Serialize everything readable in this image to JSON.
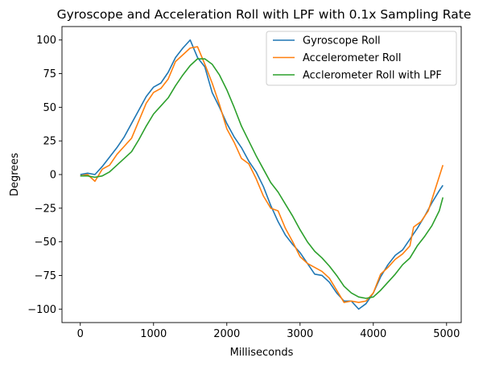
{
  "chart_data": {
    "type": "line",
    "title": "Gyroscope and Acceleration Roll with LPF with 0.1x Sampling Rate",
    "xlabel": "Milliseconds",
    "ylabel": "Degrees",
    "xlim": [
      -250,
      5200
    ],
    "ylim": [
      -110,
      110
    ],
    "xticks": [
      0,
      1000,
      2000,
      3000,
      4000,
      5000
    ],
    "yticks": [
      -100,
      -75,
      -50,
      -25,
      0,
      25,
      50,
      75,
      100
    ],
    "legend_position": "top-right",
    "grid": false,
    "series": [
      {
        "name": "Gyroscope Roll",
        "color": "#1f77b4",
        "x": [
          0,
          100,
          200,
          300,
          400,
          500,
          600,
          700,
          800,
          900,
          1000,
          1100,
          1200,
          1300,
          1400,
          1500,
          1600,
          1700,
          1800,
          1900,
          2000,
          2100,
          2200,
          2300,
          2400,
          2500,
          2600,
          2700,
          2800,
          2900,
          3000,
          3100,
          3200,
          3300,
          3400,
          3500,
          3600,
          3700,
          3800,
          3900,
          4000,
          4100,
          4200,
          4300,
          4400,
          4500,
          4600,
          4700,
          4800,
          4900,
          4950
        ],
        "y": [
          0,
          1,
          0,
          6,
          13,
          20,
          28,
          38,
          48,
          58,
          65,
          68,
          76,
          87,
          94,
          100,
          87,
          80,
          61,
          50,
          38,
          28,
          20,
          10,
          2,
          -9,
          -23,
          -35,
          -45,
          -52,
          -58,
          -66,
          -74,
          -75,
          -80,
          -88,
          -94,
          -94,
          -100,
          -96,
          -88,
          -76,
          -67,
          -60,
          -56,
          -48,
          -40,
          -31,
          -21,
          -12,
          -8
        ]
      },
      {
        "name": "Accelerometer Roll",
        "color": "#ff7f0e",
        "x": [
          0,
          100,
          200,
          300,
          400,
          500,
          600,
          700,
          800,
          900,
          1000,
          1100,
          1200,
          1300,
          1400,
          1500,
          1600,
          1700,
          1800,
          1900,
          2000,
          2100,
          2200,
          2300,
          2400,
          2500,
          2600,
          2700,
          2800,
          2900,
          3000,
          3100,
          3200,
          3300,
          3400,
          3500,
          3600,
          3700,
          3800,
          3900,
          4000,
          4100,
          4200,
          4300,
          4400,
          4500,
          4550,
          4650,
          4750,
          4850,
          4950
        ],
        "y": [
          -1,
          0,
          -5,
          4,
          7,
          15,
          21,
          27,
          40,
          53,
          61,
          64,
          71,
          84,
          89,
          94,
          95,
          82,
          68,
          52,
          34,
          24,
          12,
          8,
          -3,
          -16,
          -25,
          -27,
          -40,
          -50,
          -61,
          -66,
          -69,
          -72,
          -77,
          -86,
          -95,
          -94,
          -95,
          -94,
          -88,
          -74,
          -69,
          -63,
          -59,
          -53,
          -39,
          -35,
          -27,
          -10,
          7
        ]
      },
      {
        "name": "Acclerometer Roll with LPF",
        "color": "#2ca02c",
        "x": [
          0,
          100,
          200,
          300,
          400,
          500,
          600,
          700,
          800,
          900,
          1000,
          1100,
          1200,
          1300,
          1400,
          1500,
          1600,
          1700,
          1800,
          1900,
          2000,
          2100,
          2200,
          2300,
          2400,
          2500,
          2600,
          2700,
          2800,
          2900,
          3000,
          3100,
          3200,
          3300,
          3400,
          3500,
          3600,
          3700,
          3800,
          3900,
          4000,
          4100,
          4200,
          4300,
          4400,
          4500,
          4600,
          4700,
          4800,
          4900,
          4950
        ],
        "y": [
          -1,
          -1,
          -2,
          -1,
          2,
          7,
          12,
          17,
          26,
          36,
          45,
          51,
          57,
          66,
          74,
          81,
          86,
          86,
          82,
          74,
          63,
          50,
          36,
          25,
          14,
          4,
          -6,
          -13,
          -22,
          -31,
          -41,
          -50,
          -57,
          -62,
          -68,
          -75,
          -83,
          -88,
          -91,
          -92,
          -91,
          -86,
          -80,
          -74,
          -67,
          -62,
          -53,
          -46,
          -38,
          -27,
          -17
        ]
      }
    ]
  }
}
